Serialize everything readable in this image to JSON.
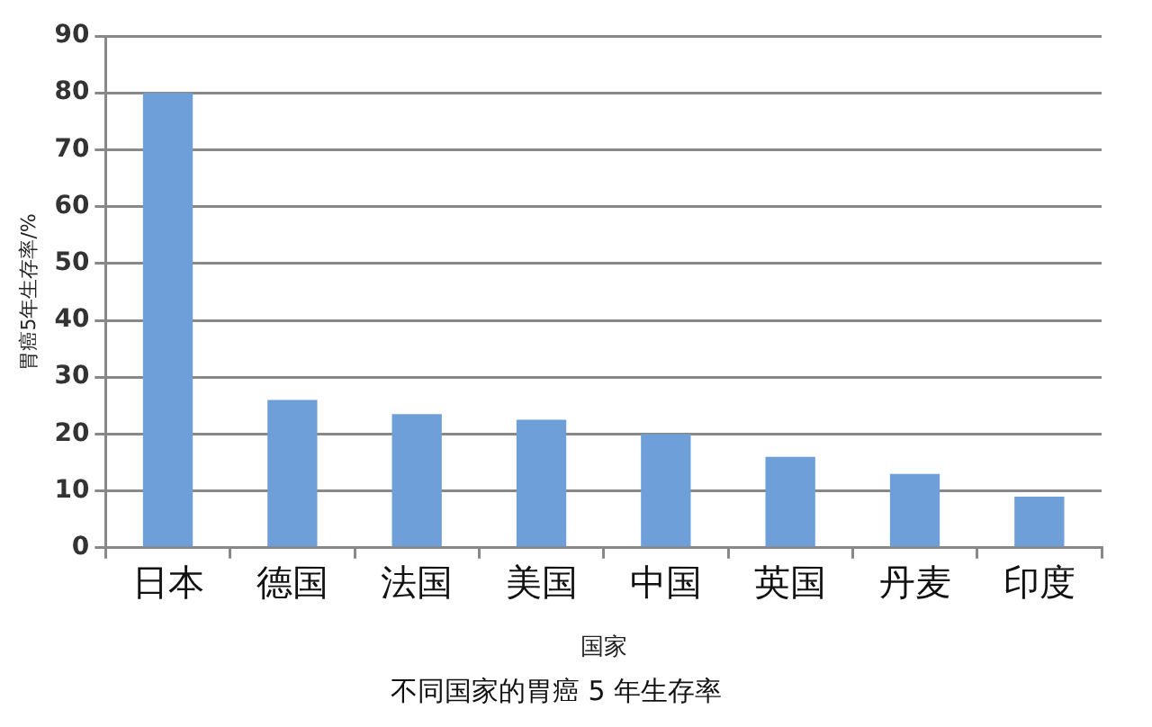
{
  "chart_data": {
    "type": "bar",
    "title": "不同国家的胃癌 5 年生存率",
    "xlabel": "国家",
    "ylabel": "胃癌5年生存率/%",
    "categories": [
      "日本",
      "德国",
      "法国",
      "美国",
      "中国",
      "英国",
      "丹麦",
      "印度"
    ],
    "values": [
      80,
      26,
      23.5,
      22.5,
      20,
      16,
      13,
      9
    ],
    "color": "#6f9fd8",
    "ylim": [
      0,
      90
    ],
    "yticks": [
      0,
      10,
      20,
      30,
      40,
      50,
      60,
      70,
      80,
      90
    ],
    "grid": "y",
    "legend": false
  }
}
